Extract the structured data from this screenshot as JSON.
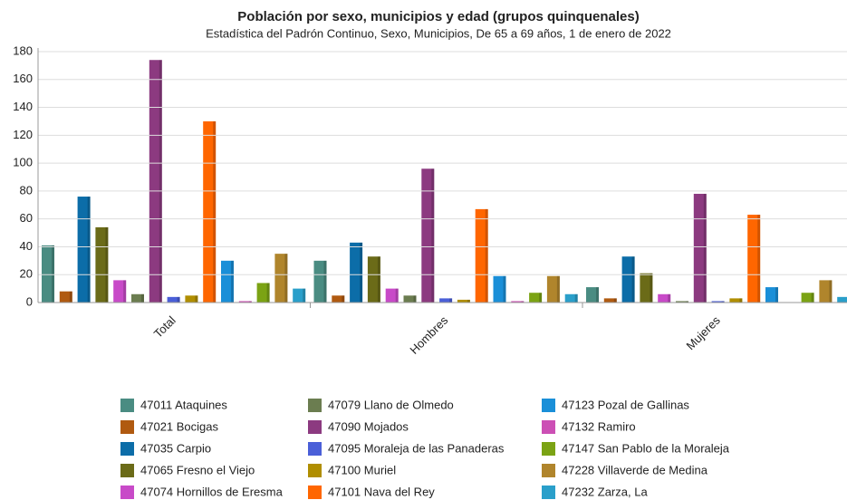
{
  "chart_data": {
    "type": "bar",
    "title": "Población por sexo, municipios y edad (grupos quinquenales)",
    "subtitle": "Estadística del Padrón Continuo, Sexo, Municipios, De 65 a 69 años, 1 de enero de 2022",
    "categories": [
      "Total",
      "Hombres",
      "Mujeres"
    ],
    "ylim": [
      0,
      180
    ],
    "yticks": [
      0,
      20,
      40,
      60,
      80,
      100,
      120,
      140,
      160,
      180
    ],
    "grid": true,
    "series": [
      {
        "name": "47011 Ataquines",
        "color": "#4a8c82",
        "values": [
          41,
          30,
          11
        ]
      },
      {
        "name": "47021 Bocigas",
        "color": "#b05a10",
        "values": [
          8,
          5,
          3
        ]
      },
      {
        "name": "47035 Carpio",
        "color": "#0c6da8",
        "values": [
          76,
          43,
          33
        ]
      },
      {
        "name": "47065 Fresno el Viejo",
        "color": "#6b6b18",
        "values": [
          54,
          33,
          21
        ]
      },
      {
        "name": "47074 Hornillos de Eresma",
        "color": "#c84ac8",
        "values": [
          16,
          10,
          6
        ]
      },
      {
        "name": "47079 Llano de Olmedo",
        "color": "#6b7d50",
        "values": [
          6,
          5,
          1
        ]
      },
      {
        "name": "47090 Mojados",
        "color": "#8c3a80",
        "values": [
          174,
          96,
          78
        ]
      },
      {
        "name": "47095 Moraleja de las Panaderas",
        "color": "#4a5fd8",
        "values": [
          4,
          3,
          1
        ]
      },
      {
        "name": "47100 Muriel",
        "color": "#b08e00",
        "values": [
          5,
          2,
          3
        ]
      },
      {
        "name": "47101 Nava del Rey",
        "color": "#ff6600",
        "values": [
          130,
          67,
          63
        ]
      },
      {
        "name": "47123 Pozal de Gallinas",
        "color": "#1a8fd8",
        "values": [
          30,
          19,
          11
        ]
      },
      {
        "name": "47132 Ramiro",
        "color": "#cc4fb5",
        "values": [
          1,
          1,
          0
        ]
      },
      {
        "name": "47147 San Pablo de la Moraleja",
        "color": "#7ba314",
        "values": [
          14,
          7,
          7
        ]
      },
      {
        "name": "47228 Villaverde de Medina",
        "color": "#b0852c",
        "values": [
          35,
          19,
          16
        ]
      },
      {
        "name": "47232 Zarza, La",
        "color": "#2a9fca",
        "values": [
          10,
          6,
          4
        ]
      }
    ]
  }
}
